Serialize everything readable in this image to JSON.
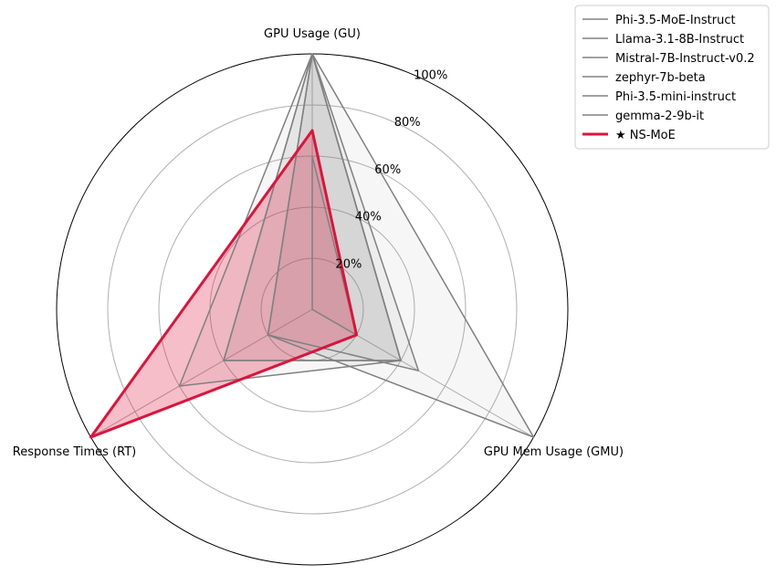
{
  "chart_data": {
    "type": "radar",
    "axes": [
      "GPU Usage (GU)",
      "GPU Mem Usage (GMU)",
      "Response Times (RT)"
    ],
    "radial_ticks": [
      20,
      40,
      60,
      80,
      100
    ],
    "radial_tick_labels": [
      "20%",
      "40%",
      "60%",
      "80%",
      "100%"
    ],
    "rlim": [
      0,
      100
    ],
    "grid": true,
    "legend_position": "top-right",
    "series": [
      {
        "name": "Phi-3.5-MoE-Instruct",
        "values": [
          100,
          48,
          20
        ],
        "color": "#808080",
        "highlight": false
      },
      {
        "name": "Llama-3.1-8B-Instruct",
        "values": [
          100,
          40,
          40
        ],
        "color": "#808080",
        "highlight": false
      },
      {
        "name": "Mistral-7B-Instruct-v0.2",
        "values": [
          100,
          100,
          20
        ],
        "color": "#808080",
        "highlight": false
      },
      {
        "name": "zephyr-7b-beta",
        "values": [
          100,
          40,
          40
        ],
        "color": "#808080",
        "highlight": false
      },
      {
        "name": "Phi-3.5-mini-instruct",
        "values": [
          100,
          40,
          60
        ],
        "color": "#808080",
        "highlight": false
      },
      {
        "name": "gemma-2-9b-it",
        "values": [
          60,
          20,
          0
        ],
        "color": "#808080",
        "highlight": false
      },
      {
        "name": "★ NS-MoE",
        "values": [
          70,
          20,
          100
        ],
        "color": "#dc143c",
        "highlight": true
      }
    ]
  }
}
